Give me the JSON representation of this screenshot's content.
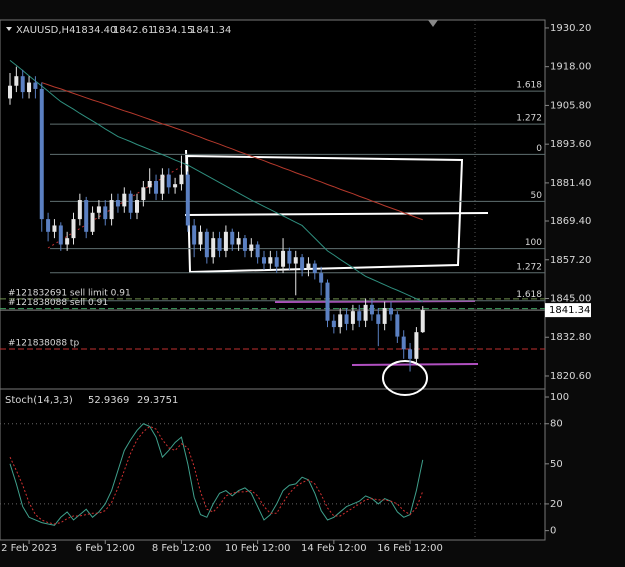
{
  "chart_data": [
    {
      "type": "candlestick",
      "symbol": "XAUUSD,H4",
      "header_values": [
        "1834.40",
        "1842.61",
        "1834.15",
        "1841.34"
      ],
      "categories": [
        null,
        null,
        null,
        "2 Feb 2023",
        null,
        null,
        null,
        null,
        null,
        null,
        null,
        null,
        null,
        null,
        null,
        "6 Feb 12:00",
        null,
        null,
        null,
        null,
        null,
        null,
        null,
        null,
        null,
        null,
        null,
        "8 Feb 12:00",
        null,
        null,
        null,
        null,
        null,
        null,
        null,
        null,
        null,
        null,
        null,
        "10 Feb 12:00",
        null,
        null,
        null,
        null,
        null,
        null,
        null,
        null,
        null,
        null,
        null,
        "14 Feb 12:00",
        null,
        null,
        null,
        null,
        null,
        null,
        null,
        null,
        null,
        null,
        null,
        "16 Feb 12:00",
        null,
        null
      ],
      "open": [
        1908,
        1912,
        1915,
        1910,
        1913,
        1911,
        1870,
        1866,
        1868,
        1862,
        1864,
        1870,
        1876,
        1866,
        1872,
        1874,
        1870,
        1876,
        1874,
        1878,
        1872,
        1876,
        1880,
        1882,
        1878,
        1884,
        1880,
        1881,
        1884,
        1868,
        1862,
        1866,
        1858,
        1864,
        1860,
        1866,
        1862,
        1864,
        1860,
        1862,
        1858,
        1856,
        1858,
        1855,
        1860,
        1856,
        1858,
        1854,
        1856,
        1853,
        1850,
        1838,
        1836,
        1840,
        1837,
        1841,
        1838,
        1843,
        1840,
        1837,
        1842,
        1840,
        1833,
        1829,
        1826,
        1834.4
      ],
      "high": [
        1916,
        1918,
        1917,
        1915,
        1915,
        1913,
        1872,
        1870,
        1869,
        1866,
        1872,
        1878,
        1877,
        1874,
        1876,
        1876,
        1878,
        1878,
        1880,
        1879,
        1878,
        1882,
        1886,
        1884,
        1886,
        1886,
        1883,
        1890,
        1885,
        1870,
        1868,
        1867,
        1866,
        1866,
        1868,
        1867,
        1866,
        1865,
        1864,
        1863,
        1860,
        1860,
        1860,
        1864,
        1861,
        1860,
        1859,
        1858,
        1857,
        1855,
        1851,
        1840,
        1842,
        1842,
        1843,
        1843,
        1845,
        1845,
        1842,
        1844,
        1844,
        1841,
        1835,
        1831,
        1836,
        1842.61
      ],
      "low": [
        1906,
        1910,
        1908,
        1908,
        1908,
        1866,
        1863,
        1864,
        1860,
        1860,
        1862,
        1868,
        1864,
        1865,
        1870,
        1868,
        1868,
        1872,
        1872,
        1870,
        1870,
        1874,
        1878,
        1876,
        1876,
        1878,
        1878,
        1879,
        1866,
        1858,
        1860,
        1856,
        1856,
        1858,
        1858,
        1860,
        1860,
        1858,
        1858,
        1856,
        1854,
        1854,
        1853,
        1853,
        1854,
        1846,
        1852,
        1852,
        1851,
        1846,
        1836,
        1834,
        1834,
        1835,
        1835,
        1836,
        1836,
        1838,
        1830,
        1835,
        1838,
        1831,
        1826,
        1822,
        1824,
        1834.15
      ],
      "close": [
        1912,
        1915,
        1910,
        1913,
        1911,
        1870,
        1866,
        1868,
        1862,
        1864,
        1870,
        1876,
        1866,
        1872,
        1874,
        1870,
        1876,
        1874,
        1878,
        1872,
        1876,
        1880,
        1882,
        1878,
        1884,
        1880,
        1881,
        1884,
        1868,
        1862,
        1866,
        1858,
        1864,
        1860,
        1866,
        1862,
        1864,
        1860,
        1862,
        1858,
        1856,
        1858,
        1855,
        1860,
        1856,
        1858,
        1854,
        1856,
        1853,
        1850,
        1838,
        1836,
        1840,
        1837,
        1841,
        1838,
        1843,
        1840,
        1837,
        1842,
        1840,
        1833,
        1829,
        1826,
        1834.4,
        1841.34
      ],
      "up_color": "#e6e6e6",
      "down_color": "#5b80c2",
      "lines": [
        {
          "color": "#b5392c",
          "values": [
            null,
            null,
            null,
            null,
            null,
            1913.0,
            1912.3,
            1911.6,
            1911.0,
            1910.3,
            1909.6,
            1908.9,
            1908.2,
            1907.5,
            1906.9,
            1906.2,
            1905.5,
            1904.8,
            1904.1,
            1903.5,
            1902.8,
            1902.1,
            1901.4,
            1900.7,
            1900.0,
            1899.4,
            1898.7,
            1898.0,
            1897.3,
            1896.5,
            1895.8,
            1895.0,
            1894.3,
            1893.6,
            1892.8,
            1892.1,
            1891.3,
            1890.6,
            1889.8,
            1889.1,
            1888.4,
            1887.6,
            1886.9,
            1886.1,
            1885.4,
            1884.6,
            1883.9,
            1883.2,
            1882.4,
            1881.7,
            1880.9,
            1880.2,
            1879.4,
            1878.7,
            1878.0,
            1877.2,
            1876.5,
            1875.7,
            1875.0,
            1874.2,
            1873.5,
            1872.8,
            1872.0,
            1871.3,
            1870.5,
            1869.8
          ]
        },
        {
          "color": "#2f8f7f",
          "values": [
            1920,
            1918.4,
            1916.8,
            1915.1,
            1913.5,
            1911.9,
            1910.3,
            1908.6,
            1907,
            1905.8,
            1904.6,
            1903.3,
            1902.1,
            1900.9,
            1899.7,
            1898.4,
            1897.2,
            1896,
            1895.2,
            1894.4,
            1893.5,
            1892.7,
            1891.9,
            1891.1,
            1890.3,
            1889.5,
            1888.6,
            1887.8,
            1887,
            1885.9,
            1884.8,
            1883.7,
            1882.6,
            1881.5,
            1880.4,
            1879.3,
            1878.2,
            1877.1,
            1876,
            1875,
            1874,
            1873,
            1872,
            1871,
            1870,
            1869,
            1868,
            1866,
            1864,
            1862,
            1860,
            1858.7,
            1857.3,
            1856,
            1854.7,
            1853.3,
            1852,
            1851.1,
            1850.2,
            1849.3,
            1848.4,
            1847.6,
            1846.7,
            1845.8,
            1844.9,
            1844
          ]
        }
      ],
      "fib_levels": [
        {
          "value": 1910.3,
          "label": "1.618"
        },
        {
          "value": 1899.9,
          "label": "1.272"
        },
        {
          "value": 1890.4,
          "label": "0"
        },
        {
          "value": 1875.6,
          "label": "50"
        },
        {
          "value": 1860.7,
          "label": "100"
        },
        {
          "value": 1853.1,
          "label": "1.272"
        },
        {
          "value": 1844.3,
          "label": "1.618"
        }
      ],
      "fib_color": "#5f6f70",
      "orders": [
        {
          "value": 1844.9,
          "label": "#121832691 sell limit 0.91",
          "color": "#6f8f4f"
        },
        {
          "value": 1841.8,
          "label": "#121838088 sell 0.91",
          "color": "#3f9f5f"
        },
        {
          "value": 1829.1,
          "label": "#121838088 tp",
          "color": "#c03030"
        }
      ],
      "current_price": {
        "value": 1841.34,
        "label": "1841.34"
      },
      "ylim": [
        1816.5,
        1932.7
      ],
      "yticks": [
        {
          "value": 1820.6,
          "label": "1820.60"
        },
        {
          "value": 1832.8,
          "label": "1832.80"
        },
        {
          "value": 1845,
          "label": "1845.00"
        },
        {
          "value": 1857.2,
          "label": "1857.20"
        },
        {
          "value": 1869.4,
          "label": "1869.40"
        },
        {
          "value": 1881.4,
          "label": "1881.40"
        },
        {
          "value": 1893.6,
          "label": "1893.60"
        },
        {
          "value": 1905.8,
          "label": "1905.80"
        },
        {
          "value": 1918,
          "label": "1918.00"
        },
        {
          "value": 1930.2,
          "label": "1930.20"
        }
      ]
    },
    {
      "type": "line",
      "title": "Stoch(14,3,3)",
      "series": [
        {
          "color": "#3fa08c",
          "dashed": false,
          "values": [
            50,
            35,
            18,
            10,
            8,
            6,
            5,
            4,
            10,
            14,
            8,
            12,
            16,
            10,
            14,
            20,
            30,
            45,
            60,
            68,
            75,
            80,
            78,
            70,
            55,
            60,
            66,
            70,
            50,
            25,
            12,
            10,
            20,
            28,
            30,
            26,
            30,
            32,
            28,
            18,
            8,
            12,
            20,
            30,
            34,
            35,
            40,
            38,
            28,
            15,
            8,
            10,
            14,
            18,
            20,
            22,
            26,
            24,
            20,
            24,
            22,
            14,
            10,
            12,
            30,
            52.9369
          ]
        },
        {
          "color": "#d03030",
          "dashed": true,
          "values": [
            55,
            45,
            34,
            21,
            12,
            8,
            6,
            5,
            6,
            9,
            11,
            11,
            12,
            13,
            13,
            15,
            21,
            32,
            45,
            58,
            68,
            74,
            78,
            76,
            68,
            62,
            60,
            65,
            62,
            48,
            29,
            16,
            14,
            19,
            26,
            28,
            29,
            29,
            30,
            26,
            18,
            13,
            13,
            21,
            28,
            33,
            36,
            38,
            35,
            27,
            17,
            11,
            11,
            14,
            17,
            20,
            23,
            24,
            23,
            23,
            22,
            20,
            15,
            12,
            17,
            29.3751
          ]
        }
      ],
      "levels": [
        20,
        80
      ],
      "ylim": [
        -7,
        106
      ],
      "yticks": [
        0,
        20,
        50,
        80,
        100
      ]
    }
  ]
}
